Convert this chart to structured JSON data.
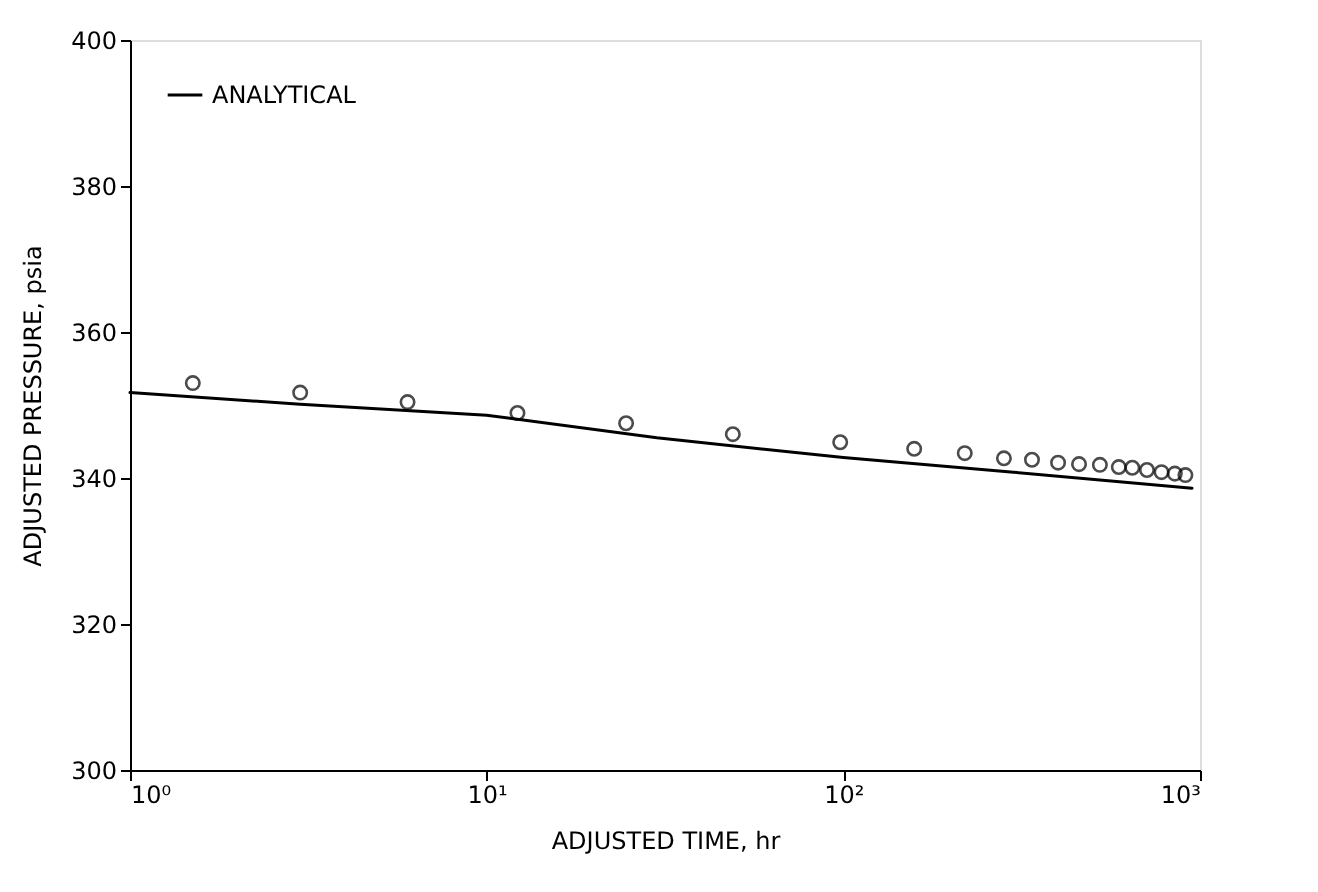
{
  "chart_data": {
    "type": "scatter",
    "xlabel": "ADJUSTED TIME, hr",
    "ylabel": "ADJUSTED PRESSURE, psia",
    "log": "x",
    "xlim": [
      1,
      1000
    ],
    "ylim": [
      300,
      400
    ],
    "xticks": [
      {
        "value": 1,
        "label": "10⁰"
      },
      {
        "value": 10,
        "label": "10¹"
      },
      {
        "value": 100,
        "label": "10²"
      },
      {
        "value": 1000,
        "label": "10³"
      }
    ],
    "yticks": [
      300,
      320,
      340,
      360,
      380,
      400
    ],
    "grid": false,
    "legend": "top left",
    "series": [
      {
        "color": "#000000",
        "marker": "circle",
        "x": [
          1.5,
          3.0,
          6.0,
          12.2,
          24.6,
          49,
          98,
          158,
          219,
          282,
          338,
          400,
          458,
          524,
          592,
          646,
          710,
          780,
          850,
          910
        ],
        "values": [
          353.0,
          351.7,
          350.4,
          348.9,
          347.5,
          346.0,
          344.9,
          344.0,
          343.4,
          342.7,
          342.5,
          342.1,
          341.9,
          341.8,
          341.5,
          341.4,
          341.1,
          340.8,
          340.6,
          340.4
        ]
      },
      {
        "type": "line",
        "name": "ANALYTICAL",
        "color": "#000000",
        "line_style": "solid",
        "x": [
          1,
          3,
          10,
          30,
          100,
          300,
          950
        ],
        "values": [
          351.7,
          350.1,
          348.6,
          345.5,
          342.8,
          340.8,
          338.6
        ]
      }
    ]
  }
}
